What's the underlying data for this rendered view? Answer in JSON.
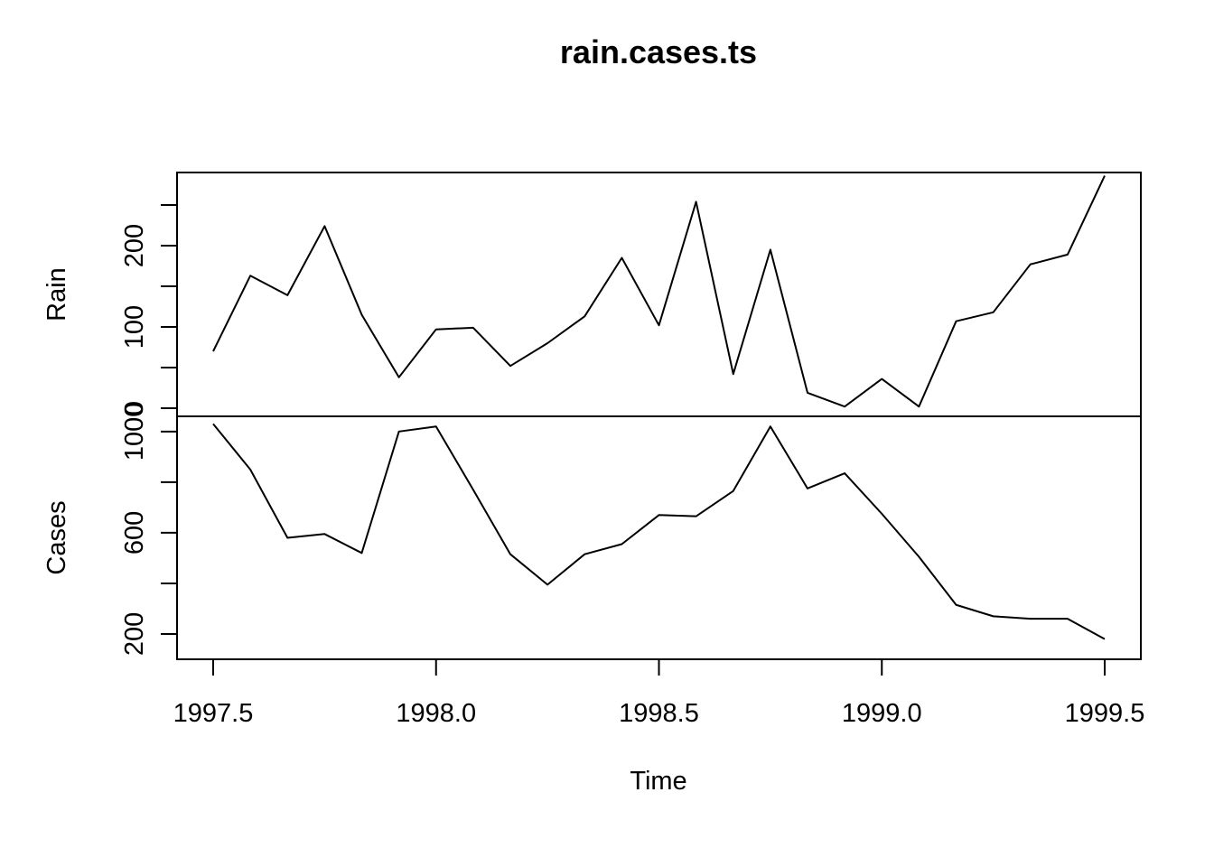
{
  "chart_data": {
    "type": "line",
    "title": "rain.cases.ts",
    "xlabel": "Time",
    "x": [
      1997.5,
      1997.5833,
      1997.6667,
      1997.75,
      1997.8333,
      1997.9167,
      1998.0,
      1998.0833,
      1998.1667,
      1998.25,
      1998.3333,
      1998.4167,
      1998.5,
      1998.5833,
      1998.6667,
      1998.75,
      1998.8333,
      1998.9167,
      1999.0,
      1999.0833,
      1999.1667,
      1999.25,
      1999.3333,
      1999.4167,
      1999.5
    ],
    "xlim": [
      1997.5,
      1999.5
    ],
    "xticks": [
      "1997.5",
      "1998.0",
      "1998.5",
      "1999.0",
      "1999.5"
    ],
    "xtick_values": [
      1997.5,
      1998.0,
      1998.5,
      1999.0,
      1999.5
    ],
    "series": [
      {
        "name": "Rain",
        "ylim": [
          -10,
          290
        ],
        "yticks": [
          0,
          50,
          100,
          150,
          200,
          250
        ],
        "ytick_labels": [
          "0",
          "",
          "100",
          "",
          "200",
          ""
        ],
        "values": [
          70,
          163,
          139,
          224,
          115,
          38,
          97,
          99,
          52,
          80,
          113,
          185,
          102,
          254,
          42,
          195,
          19,
          2,
          36,
          2,
          107,
          118,
          177,
          189,
          286
        ]
      },
      {
        "name": "Cases",
        "ylim": [
          100,
          1060
        ],
        "yticks": [
          200,
          400,
          600,
          800,
          1000
        ],
        "ytick_labels": [
          "200",
          "",
          "600",
          "",
          "1000"
        ],
        "values": [
          1030,
          850,
          580,
          595,
          520,
          1000,
          1020,
          770,
          515,
          395,
          515,
          555,
          670,
          665,
          765,
          1020,
          775,
          835,
          675,
          505,
          315,
          270,
          260,
          260,
          180
        ]
      }
    ]
  }
}
